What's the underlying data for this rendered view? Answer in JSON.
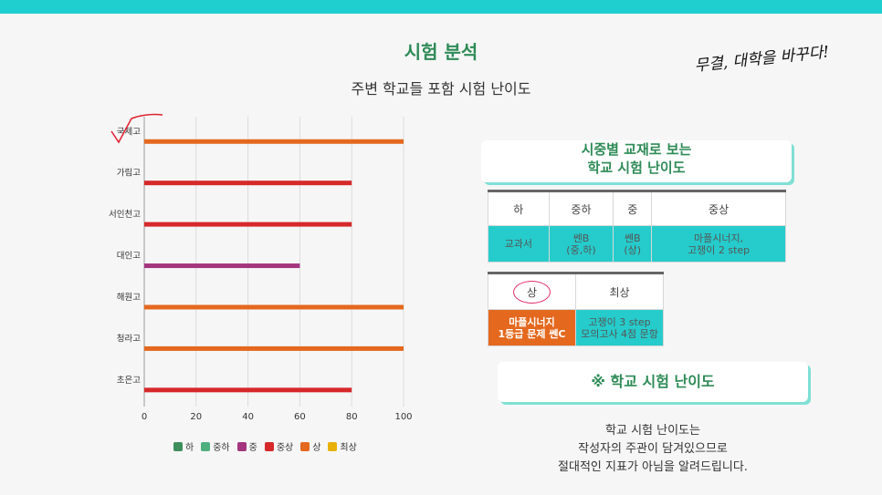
{
  "page": {
    "title": "시험 분석",
    "subtitle": "주변 학교들 포함 시험 난이도",
    "slogan": "무결, 대학을 바꾸다!"
  },
  "cards": {
    "textbook_title_line1": "시중별 교재로 보는",
    "textbook_title_line2": "학교 시험 난이도",
    "difficulty_title": "※ 학교 시험 난이도"
  },
  "table1": {
    "headers": [
      "하",
      "중하",
      "중",
      "중상"
    ],
    "cells": [
      "교과서",
      "쎈B\n(중,하)",
      "쎈B\n(상)",
      "마플시너지,\n고쟁이 2 step"
    ]
  },
  "table2": {
    "headers": [
      "상",
      "최상"
    ],
    "cells": [
      "마플시너지\n1등급 문제 쎈C",
      "고쟁이 3 step\n모의고사 4점 문항"
    ]
  },
  "note": {
    "line1": "학교 시험 난이도는",
    "line2": "작성자의 주관이 담겨있으므로",
    "line3": "절대적인 지표가 아님을 알려드립니다."
  },
  "chart_data": {
    "type": "bar",
    "orientation": "horizontal",
    "categories": [
      "국제고",
      "가림고",
      "서인천고",
      "대인고",
      "해원고",
      "청라고",
      "초은고"
    ],
    "values": [
      100,
      80,
      80,
      60,
      100,
      100,
      80
    ],
    "levels": [
      "상",
      "중상",
      "중상",
      "중",
      "상",
      "상",
      "중상"
    ],
    "xlim": [
      0,
      100
    ],
    "xticks": [
      0,
      20,
      40,
      60,
      80,
      100
    ],
    "grid": true,
    "legend": [
      {
        "name": "하",
        "color": "#3e8e5e"
      },
      {
        "name": "중하",
        "color": "#4caf7d"
      },
      {
        "name": "중",
        "color": "#a4357f"
      },
      {
        "name": "중상",
        "color": "#d6282a"
      },
      {
        "name": "상",
        "color": "#e4681e"
      },
      {
        "name": "최상",
        "color": "#e8b10a"
      }
    ],
    "legend_position": "bottom"
  }
}
